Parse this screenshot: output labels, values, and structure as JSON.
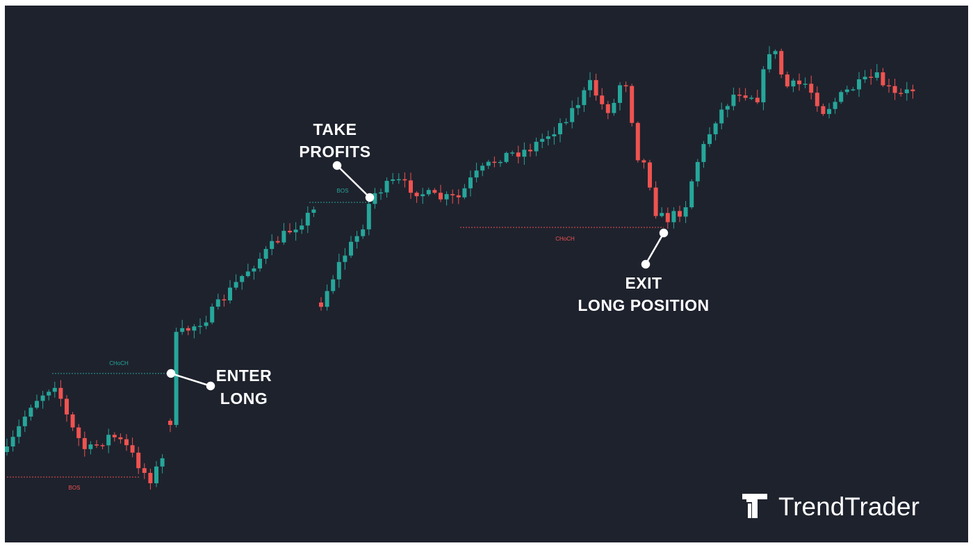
{
  "annotations": [
    {
      "lines": [
        "TAKE",
        "PROFITS"
      ]
    },
    {
      "lines": [
        "ENTER",
        "LONG"
      ]
    },
    {
      "lines": [
        "EXIT",
        "LONG POSITION"
      ]
    }
  ],
  "markers": [
    {
      "label": "CHoCH"
    },
    {
      "label": "BOS"
    },
    {
      "label": "BOS"
    },
    {
      "label": "CHoCH"
    }
  ],
  "logo": {
    "text": "TrendTrader"
  }
}
